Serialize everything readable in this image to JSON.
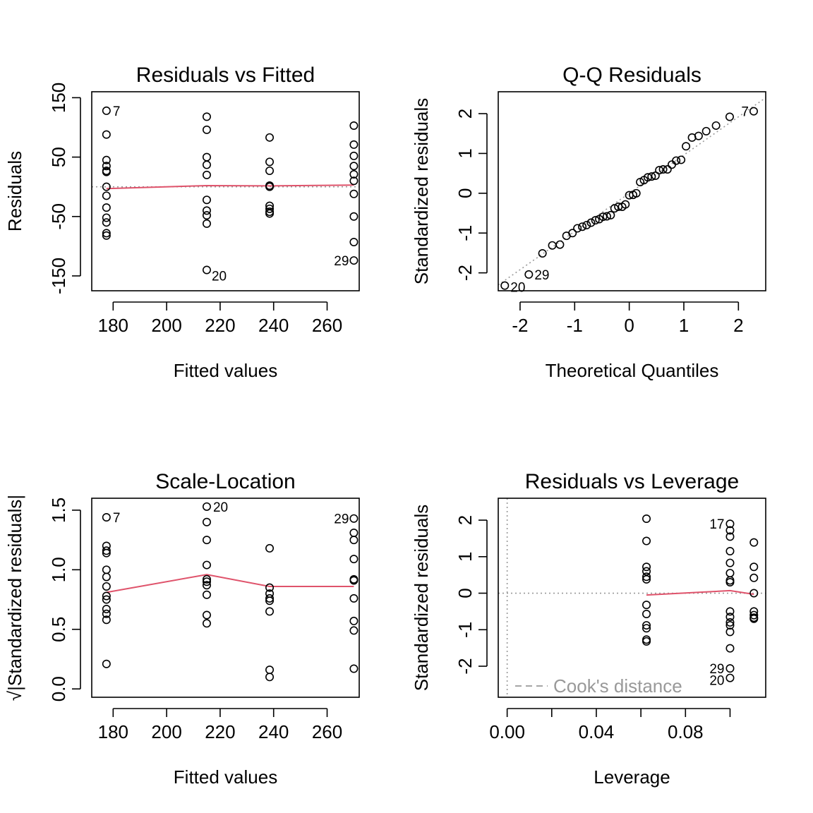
{
  "chart_data": [
    {
      "type": "scatter",
      "title": "Residuals vs Fitted",
      "xlabel": "Fitted values",
      "ylabel": "Residuals",
      "xlim": [
        172,
        272
      ],
      "ylim": [
        -175,
        160
      ],
      "xticks": [
        180,
        200,
        220,
        240,
        260
      ],
      "xtick_labels": [
        "180",
        "200",
        "220",
        "240",
        "260"
      ],
      "yticks": [
        -150,
        -50,
        50,
        150
      ],
      "ytick_labels": [
        "-150",
        "-50",
        "50",
        "150"
      ],
      "points": [
        [
          177.5,
          128
        ],
        [
          177.5,
          88
        ],
        [
          177.5,
          45
        ],
        [
          177.5,
          35
        ],
        [
          177.5,
          27
        ],
        [
          177.5,
          25
        ],
        [
          177.5,
          0
        ],
        [
          177.5,
          -15
        ],
        [
          177.5,
          -35
        ],
        [
          177.5,
          -52
        ],
        [
          177.5,
          -60
        ],
        [
          177.5,
          -78
        ],
        [
          177.5,
          -82
        ],
        [
          215,
          118
        ],
        [
          215,
          96
        ],
        [
          215,
          50
        ],
        [
          215,
          37
        ],
        [
          215,
          20
        ],
        [
          215,
          -22
        ],
        [
          215,
          -40
        ],
        [
          215,
          -48
        ],
        [
          215,
          -62
        ],
        [
          215,
          -140
        ],
        [
          238.5,
          83
        ],
        [
          238.5,
          42
        ],
        [
          238.5,
          27
        ],
        [
          238.5,
          2
        ],
        [
          238.5,
          0
        ],
        [
          238.5,
          -32
        ],
        [
          238.5,
          -37
        ],
        [
          238.5,
          -42
        ],
        [
          238.5,
          -45
        ],
        [
          270,
          103
        ],
        [
          270,
          71
        ],
        [
          270,
          52
        ],
        [
          270,
          35
        ],
        [
          270,
          21
        ],
        [
          270,
          10
        ],
        [
          270,
          -12
        ],
        [
          270,
          -50
        ],
        [
          270,
          -93
        ],
        [
          270,
          -124
        ]
      ],
      "point_labels": [
        {
          "label": "7",
          "x": 177.5,
          "y": 128
        },
        {
          "label": "20",
          "x": 215,
          "y": -140
        },
        {
          "label": "29",
          "x": 270,
          "y": -124
        }
      ],
      "smooth_line": [
        [
          177.5,
          -3
        ],
        [
          215,
          2
        ],
        [
          238.5,
          1.5
        ],
        [
          270,
          3
        ]
      ],
      "reference_line": 0,
      "colors": {
        "smooth": "#DF536B",
        "reference": "#999999"
      }
    },
    {
      "type": "scatter",
      "title": "Q-Q Residuals",
      "xlabel": "Theoretical Quantiles",
      "ylabel": "Standardized residuals",
      "xlim": [
        -2.4,
        2.5
      ],
      "ylim": [
        -2.45,
        2.55
      ],
      "xticks": [
        -2,
        -1,
        0,
        1,
        2
      ],
      "xtick_labels": [
        "-2",
        "-1",
        "0",
        "1",
        "2"
      ],
      "yticks": [
        -2,
        -1,
        0,
        1,
        2
      ],
      "ytick_labels": [
        "-2",
        "-1",
        "0",
        "1",
        "2"
      ],
      "points": [
        [
          -2.28,
          -2.32
        ],
        [
          -1.84,
          -2.04
        ],
        [
          -1.59,
          -1.51
        ],
        [
          -1.41,
          -1.31
        ],
        [
          -1.27,
          -1.29
        ],
        [
          -1.15,
          -1.07
        ],
        [
          -1.04,
          -1.0
        ],
        [
          -0.95,
          -0.88
        ],
        [
          -0.86,
          -0.84
        ],
        [
          -0.78,
          -0.8
        ],
        [
          -0.7,
          -0.74
        ],
        [
          -0.62,
          -0.68
        ],
        [
          -0.55,
          -0.65
        ],
        [
          -0.48,
          -0.59
        ],
        [
          -0.41,
          -0.58
        ],
        [
          -0.34,
          -0.55
        ],
        [
          -0.27,
          -0.38
        ],
        [
          -0.2,
          -0.34
        ],
        [
          -0.13,
          -0.34
        ],
        [
          -0.07,
          -0.28
        ],
        [
          0.0,
          -0.05
        ],
        [
          0.07,
          -0.04
        ],
        [
          0.13,
          0.0
        ],
        [
          0.2,
          0.28
        ],
        [
          0.27,
          0.33
        ],
        [
          0.34,
          0.4
        ],
        [
          0.41,
          0.42
        ],
        [
          0.48,
          0.44
        ],
        [
          0.55,
          0.58
        ],
        [
          0.62,
          0.6
        ],
        [
          0.7,
          0.6
        ],
        [
          0.78,
          0.72
        ],
        [
          0.86,
          0.82
        ],
        [
          0.95,
          0.84
        ],
        [
          1.04,
          1.18
        ],
        [
          1.15,
          1.4
        ],
        [
          1.27,
          1.44
        ],
        [
          1.41,
          1.56
        ],
        [
          1.59,
          1.7
        ],
        [
          1.84,
          1.92
        ],
        [
          2.28,
          2.06
        ]
      ],
      "point_labels": [
        {
          "label": "7",
          "x": 2.28,
          "y": 2.06
        },
        {
          "label": "29",
          "x": -1.84,
          "y": -2.04
        },
        {
          "label": "20",
          "x": -2.28,
          "y": -2.32
        }
      ],
      "reference_line_slope": 0.96,
      "colors": {
        "reference": "#999999"
      }
    },
    {
      "type": "scatter",
      "title": "Scale-Location",
      "xlabel": "Fitted values",
      "ylabel": "√|Standardized residuals|",
      "xlim": [
        172,
        272
      ],
      "ylim": [
        -0.07,
        1.6
      ],
      "xticks": [
        180,
        200,
        220,
        240,
        260
      ],
      "xtick_labels": [
        "180",
        "200",
        "220",
        "240",
        "260"
      ],
      "yticks": [
        0.0,
        0.5,
        1.0,
        1.5
      ],
      "ytick_labels": [
        "0.0",
        "0.5",
        "1.0",
        "1.5"
      ],
      "points": [
        [
          177.5,
          1.44
        ],
        [
          177.5,
          1.2
        ],
        [
          177.5,
          1.16
        ],
        [
          177.5,
          1.14
        ],
        [
          177.5,
          1.0
        ],
        [
          177.5,
          0.94
        ],
        [
          177.5,
          0.86
        ],
        [
          177.5,
          0.78
        ],
        [
          177.5,
          0.75
        ],
        [
          177.5,
          0.67
        ],
        [
          177.5,
          0.63
        ],
        [
          177.5,
          0.58
        ],
        [
          177.5,
          0.21
        ],
        [
          215,
          1.53
        ],
        [
          215,
          1.4
        ],
        [
          215,
          1.25
        ],
        [
          215,
          1.04
        ],
        [
          215,
          0.92
        ],
        [
          215,
          0.9
        ],
        [
          215,
          0.87
        ],
        [
          215,
          0.79
        ],
        [
          215,
          0.62
        ],
        [
          215,
          0.55
        ],
        [
          238.5,
          1.18
        ],
        [
          238.5,
          0.85
        ],
        [
          238.5,
          0.8
        ],
        [
          238.5,
          0.76
        ],
        [
          238.5,
          0.74
        ],
        [
          238.5,
          0.65
        ],
        [
          238.5,
          0.16
        ],
        [
          238.5,
          0.1
        ],
        [
          270,
          1.43
        ],
        [
          270,
          1.31
        ],
        [
          270,
          1.25
        ],
        [
          270,
          1.09
        ],
        [
          270,
          0.92
        ],
        [
          270,
          0.91
        ],
        [
          270,
          0.76
        ],
        [
          270,
          0.57
        ],
        [
          270,
          0.49
        ],
        [
          270,
          0.17
        ]
      ],
      "point_labels": [
        {
          "label": "7",
          "x": 177.5,
          "y": 1.44
        },
        {
          "label": "20",
          "x": 215,
          "y": 1.53
        },
        {
          "label": "29",
          "x": 270,
          "y": 1.43
        }
      ],
      "smooth_line": [
        [
          177.5,
          0.81
        ],
        [
          215,
          0.96
        ],
        [
          238.5,
          0.86
        ],
        [
          270,
          0.86
        ]
      ],
      "colors": {
        "smooth": "#DF536B"
      }
    },
    {
      "type": "scatter",
      "title": "Residuals vs Leverage",
      "xlabel": "Leverage",
      "ylabel": "Standardized residuals",
      "xlim": [
        -0.004,
        0.116
      ],
      "ylim": [
        -2.85,
        2.6
      ],
      "xticks": [
        0.0,
        0.02,
        0.04,
        0.06,
        0.08,
        0.1
      ],
      "xtick_labels": [
        "0.00",
        "",
        "0.04",
        "",
        "0.08",
        ""
      ],
      "yticks": [
        -2,
        -1,
        0,
        1,
        2
      ],
      "ytick_labels": [
        "-2",
        "-1",
        "0",
        "1",
        "2"
      ],
      "points": [
        [
          0.0625,
          2.04
        ],
        [
          0.0625,
          1.43
        ],
        [
          0.0625,
          0.72
        ],
        [
          0.0625,
          0.6
        ],
        [
          0.0625,
          0.45
        ],
        [
          0.0625,
          0.38
        ],
        [
          0.0625,
          -0.32
        ],
        [
          0.0625,
          -0.57
        ],
        [
          0.0625,
          -0.88
        ],
        [
          0.0625,
          -0.96
        ],
        [
          0.0625,
          -1.27
        ],
        [
          0.0625,
          -1.32
        ],
        [
          0.1,
          1.9
        ],
        [
          0.1,
          1.72
        ],
        [
          0.1,
          1.55
        ],
        [
          0.1,
          1.15
        ],
        [
          0.1,
          0.83
        ],
        [
          0.1,
          0.55
        ],
        [
          0.1,
          0.35
        ],
        [
          0.1,
          0.3
        ],
        [
          0.1,
          -0.5
        ],
        [
          0.1,
          -0.65
        ],
        [
          0.1,
          -0.8
        ],
        [
          0.1,
          -0.88
        ],
        [
          0.1,
          -1.06
        ],
        [
          0.1,
          -1.51
        ],
        [
          0.1,
          -2.06
        ],
        [
          0.1,
          -2.32
        ],
        [
          0.1107,
          1.39
        ],
        [
          0.1107,
          0.72
        ],
        [
          0.1107,
          0.42
        ],
        [
          0.1107,
          0.0
        ],
        [
          0.1107,
          -0.5
        ],
        [
          0.1107,
          -0.6
        ],
        [
          0.1107,
          -0.67
        ],
        [
          0.1107,
          -0.7
        ]
      ],
      "point_labels": [
        {
          "label": "17",
          "x": 0.1,
          "y": 1.9
        },
        {
          "label": "29",
          "x": 0.1,
          "y": -2.06
        },
        {
          "label": "20",
          "x": 0.1,
          "y": -2.32
        }
      ],
      "smooth_line": [
        [
          0.0625,
          -0.05
        ],
        [
          0.1,
          0.07
        ],
        [
          0.1107,
          -0.03
        ]
      ],
      "reference_lines": {
        "h": 0,
        "v": 0
      },
      "legend": {
        "text": "Cook's distance",
        "placement": "bottom-left",
        "style": "dashed"
      },
      "colors": {
        "smooth": "#DF536B",
        "reference": "#999999",
        "legend": "#999999"
      }
    }
  ]
}
